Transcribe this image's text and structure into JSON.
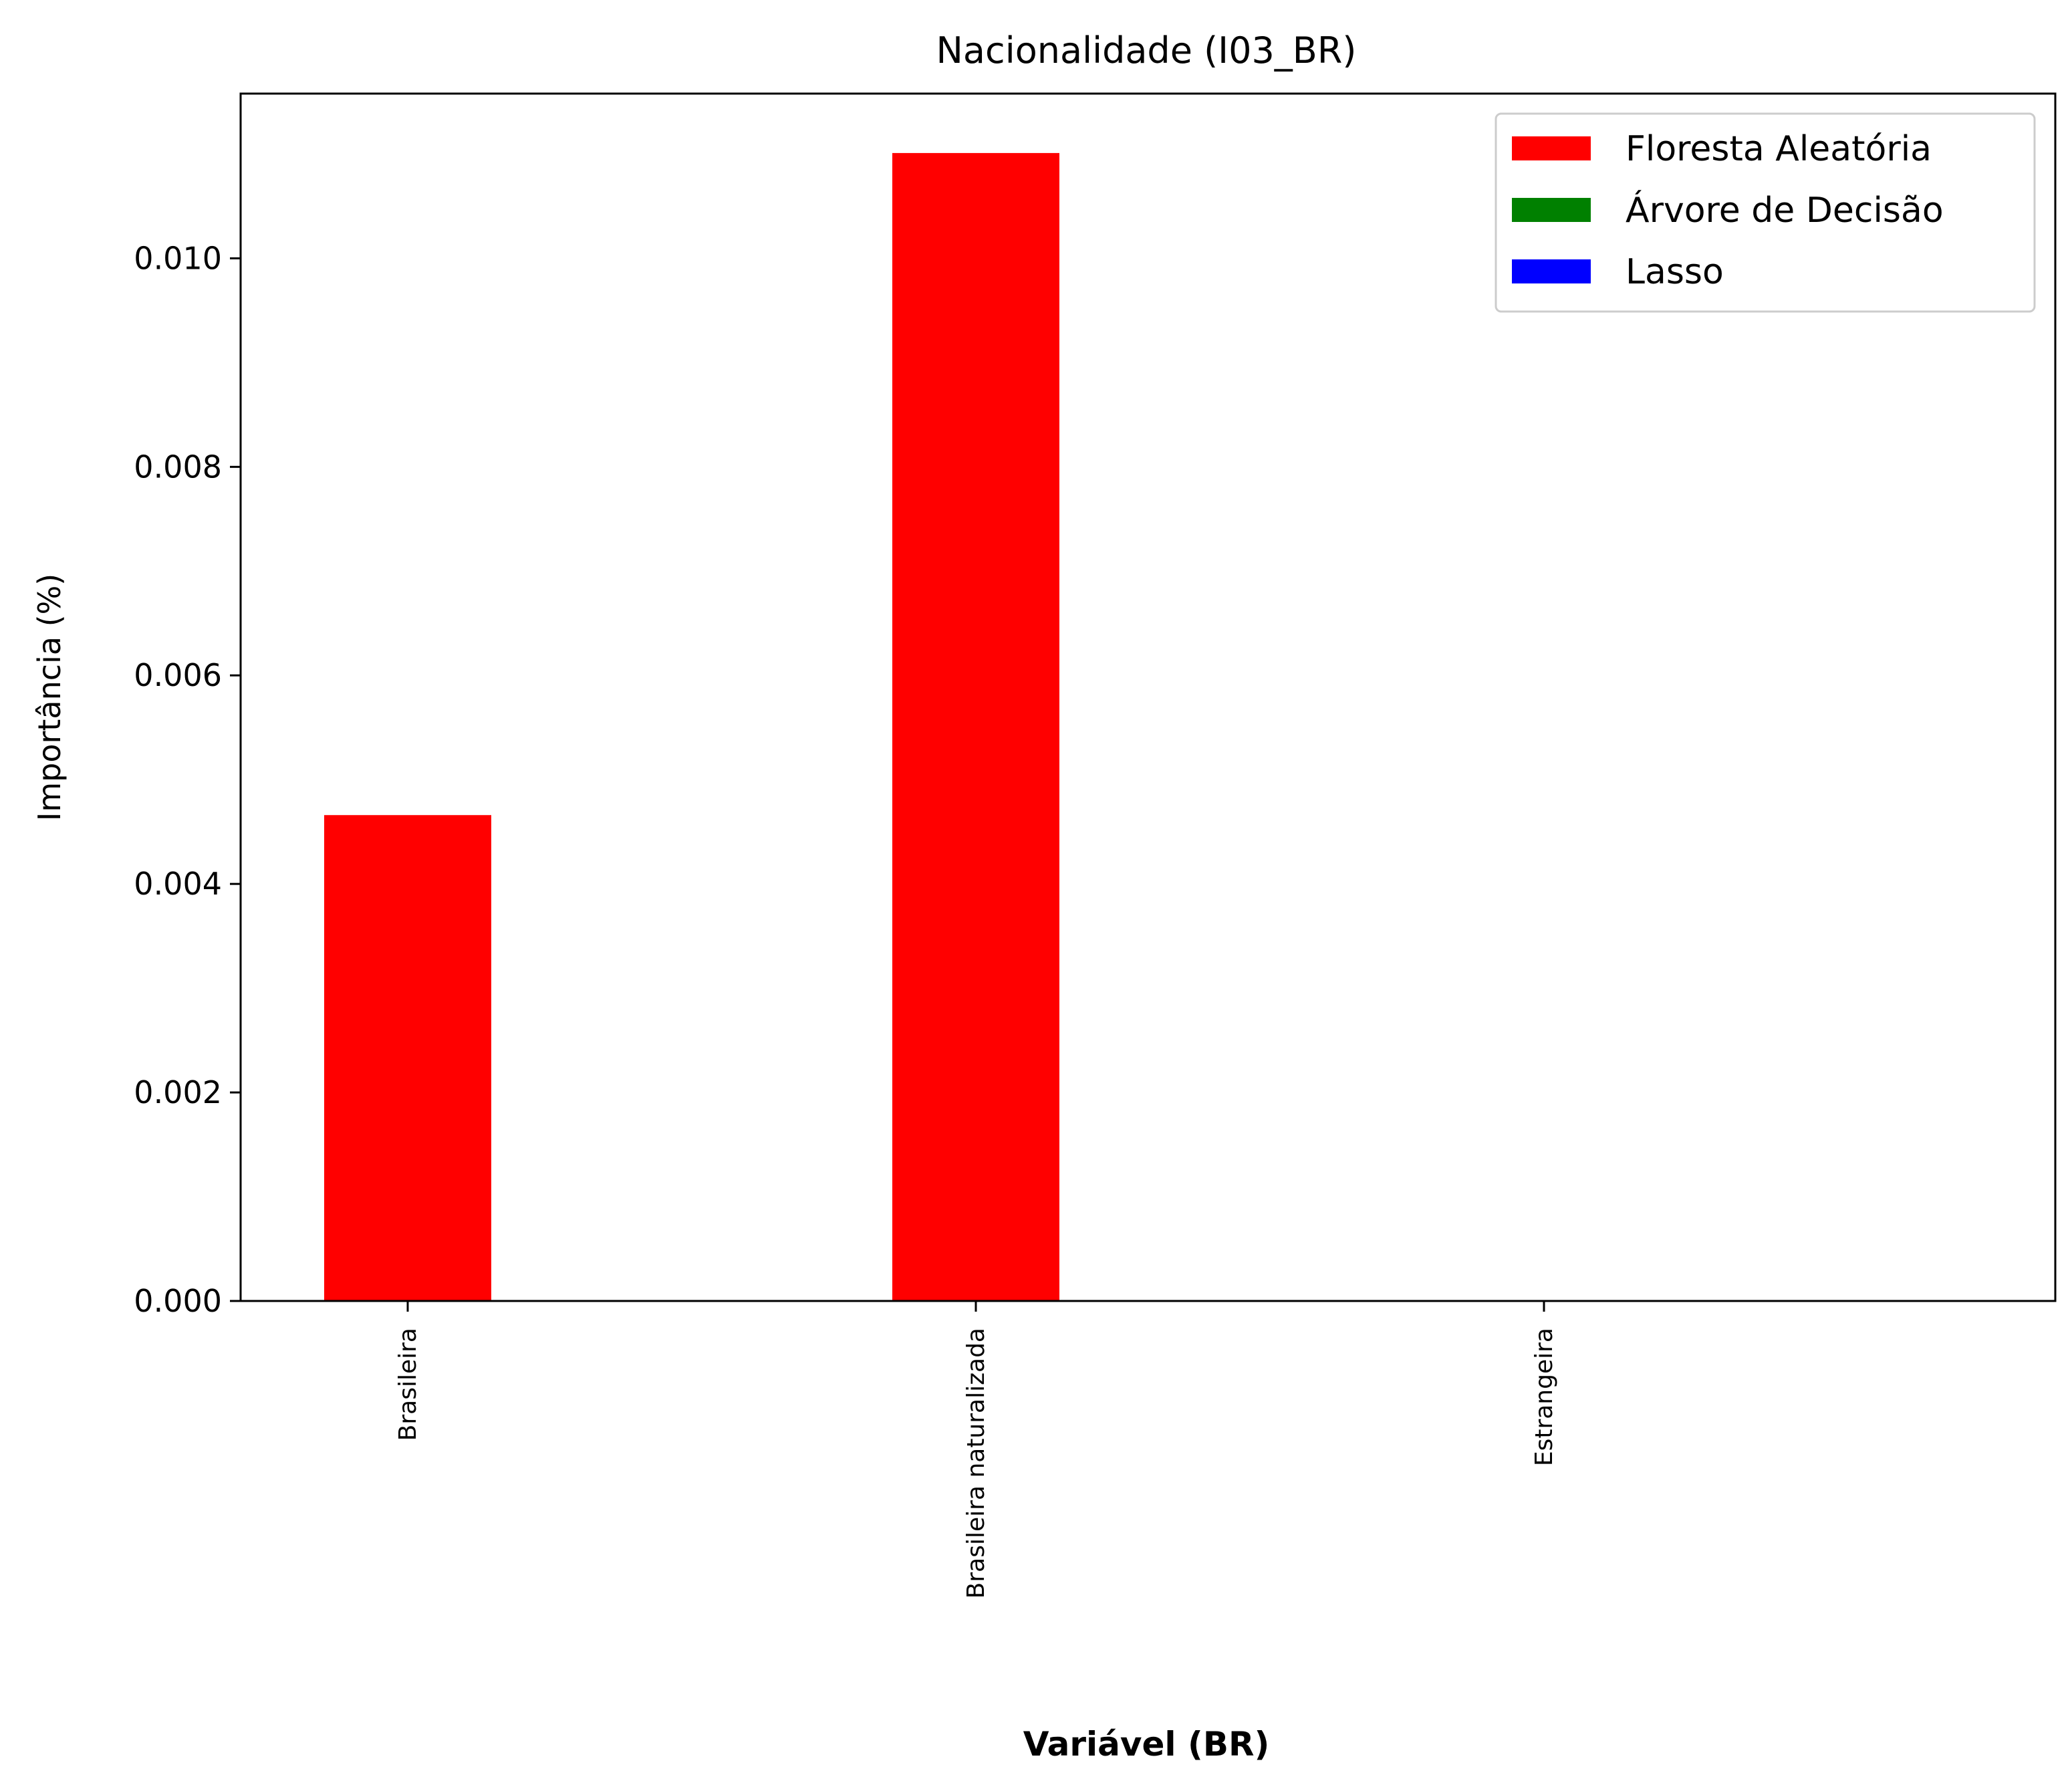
{
  "chart_data": {
    "type": "bar",
    "title": "Nacionalidade (I03_BR)",
    "xlabel": "Variável (BR)",
    "ylabel": "Importância (%)",
    "categories": [
      "Brasileira",
      "Brasileira naturalizada",
      "Estrangeira"
    ],
    "series": [
      {
        "name": "Floresta Aleatória",
        "color": "#ff0000",
        "values": [
          0.00466,
          0.01101,
          0.0
        ]
      },
      {
        "name": "Árvore de Decisão",
        "color": "#008000",
        "values": [
          0.0,
          0.0,
          0.0
        ]
      },
      {
        "name": "Lasso",
        "color": "#0000ff",
        "values": [
          0.0,
          0.0,
          0.0
        ]
      }
    ],
    "ylim": [
      0,
      0.01158
    ],
    "yticks": [
      0.0,
      0.002,
      0.004,
      0.006,
      0.008,
      0.01
    ],
    "ytick_labels": [
      "0.000",
      "0.002",
      "0.004",
      "0.006",
      "0.008",
      "0.010"
    ],
    "legend_position": "top-right",
    "grid": false
  }
}
